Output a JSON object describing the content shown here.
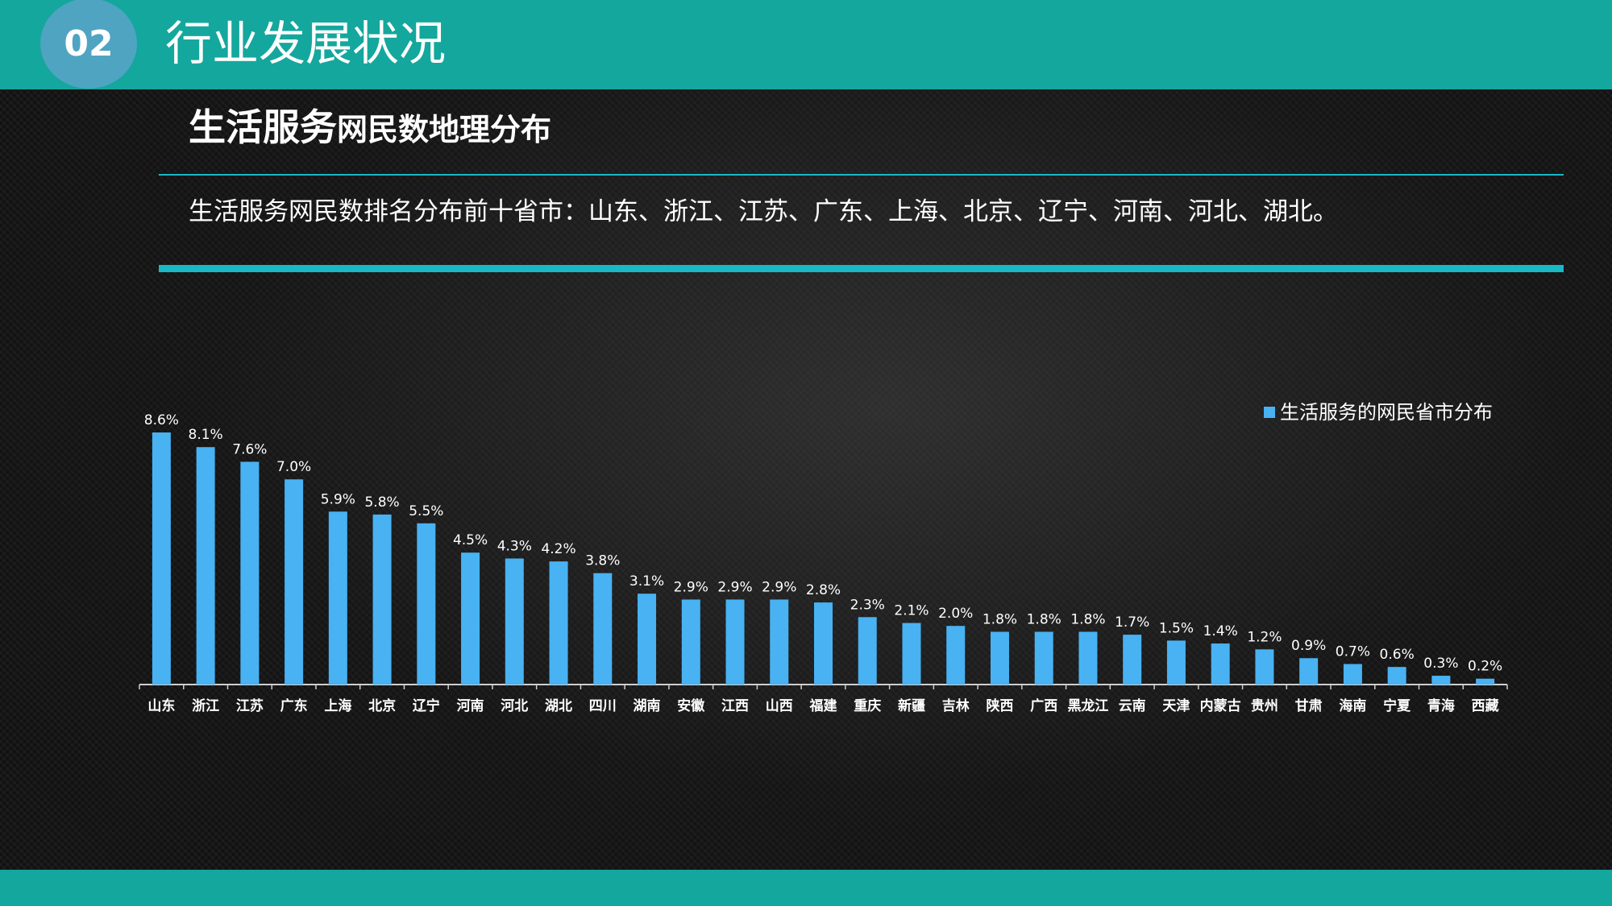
{
  "header": {
    "section_number": "02",
    "section_title": "行业发展状况"
  },
  "main": {
    "heading_big": "生活服务",
    "heading_small": "网民数地理分布",
    "summary": "生活服务网民数排名分布前十省市：山东、浙江、江苏、广东、上海、北京、辽宁、河南、河北、湖北。"
  },
  "colors": {
    "header_bar": "#14a79d",
    "badge": "#4fa4c2",
    "accent_line": "#19b8c4",
    "bar": "#48b2f3"
  },
  "chart_data": {
    "type": "bar",
    "categories": [
      "山东",
      "浙江",
      "江苏",
      "广东",
      "上海",
      "北京",
      "辽宁",
      "河南",
      "河北",
      "湖北",
      "四川",
      "湖南",
      "安徽",
      "江西",
      "山西",
      "福建",
      "重庆",
      "新疆",
      "吉林",
      "陕西",
      "广西",
      "黑龙江",
      "云南",
      "天津",
      "内蒙古",
      "贵州",
      "甘肃",
      "海南",
      "宁夏",
      "青海",
      "西藏"
    ],
    "series": [
      {
        "name": "生活服务的网民省市分布",
        "values": [
          8.6,
          8.1,
          7.6,
          7.0,
          5.9,
          5.8,
          5.5,
          4.5,
          4.3,
          4.2,
          3.8,
          3.1,
          2.9,
          2.9,
          2.9,
          2.8,
          2.3,
          2.1,
          2.0,
          1.8,
          1.8,
          1.8,
          1.7,
          1.5,
          1.4,
          1.2,
          0.9,
          0.7,
          0.6,
          0.3,
          0.2
        ],
        "labels": [
          "8.6%",
          "8.1%",
          "7.6%",
          "7.0%",
          "5.9%",
          "5.8%",
          "5.5%",
          "4.5%",
          "4.3%",
          "4.2%",
          "3.8%",
          "3.1%",
          "2.9%",
          "2.9%",
          "2.9%",
          "2.8%",
          "2.3%",
          "2.1%",
          "2.0%",
          "1.8%",
          "1.8%",
          "1.8%",
          "1.7%",
          "1.5%",
          "1.4%",
          "1.2%",
          "0.9%",
          "0.7%",
          "0.6%",
          "0.3%",
          "0.2%"
        ]
      }
    ],
    "ylim": [
      0,
      8.6
    ],
    "grid": false,
    "legend_position": "top-right",
    "title": "",
    "xlabel": "",
    "ylabel": ""
  }
}
